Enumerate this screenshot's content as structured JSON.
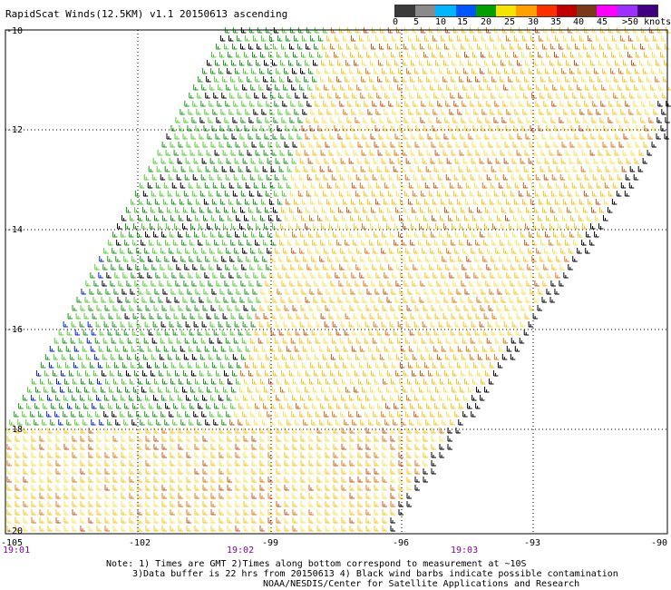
{
  "title": "RapidScat Winds(12.5KM) v1.1 20150613 ascending",
  "colorbar": {
    "labels": [
      "0",
      "5",
      "10",
      "15",
      "20",
      "25",
      "30",
      "35",
      "40",
      "45",
      ">50 knots"
    ],
    "colors": [
      "#3a3a3a",
      "#8a8a8a",
      "#00b7ff",
      "#0055ff",
      "#00a000",
      "#f5e400",
      "#ffa000",
      "#ff3000",
      "#c00000",
      "#7a3a1a",
      "#ff00ff",
      "#9b30ff",
      "#400080"
    ]
  },
  "axes": {
    "lat_labels": [
      "-10",
      "-12",
      "-14",
      "-16",
      "-18",
      "-20"
    ],
    "lon_labels": [
      "-105",
      "-102",
      "-99",
      "-96",
      "-93",
      "-90"
    ],
    "time_labels": [
      "19:01",
      "19:02",
      "19:03"
    ]
  },
  "notes": {
    "line1": "Note: 1) Times are GMT 2)Times along bottom correspond to measurement at ~10S",
    "line2": "3)Data buffer is 22 hrs from 20150613 4) Black wind barbs indicate possible contamination",
    "line3": "NOAA/NESDIS/Center for Satellite Applications and Research"
  }
}
